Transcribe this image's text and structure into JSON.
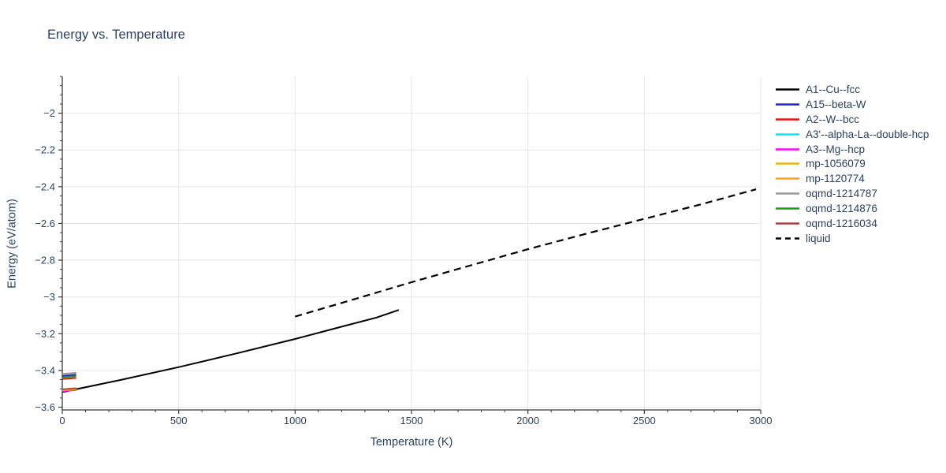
{
  "chart_data": {
    "type": "line",
    "title": "Energy vs. Temperature",
    "xlabel": "Temperature (K)",
    "ylabel": "Energy (eV/atom)",
    "xlim": [
      0,
      3000
    ],
    "ylim": [
      -3.615,
      -1.8
    ],
    "x_ticks": [
      0,
      500,
      1000,
      1500,
      2000,
      2500,
      3000
    ],
    "x_minor_step": 100,
    "y_ticks": [
      -2,
      -2.2,
      -2.4,
      -2.6,
      -2.8,
      -3,
      -3.2,
      -3.4,
      -3.6
    ],
    "y_minor_step": 0.05,
    "grid": true,
    "legend_position": "top-right",
    "text_color": "#2a3f5f",
    "grid_color": "#e6e6e6",
    "axis_color": "#3a3a3a",
    "series": [
      {
        "name": "A1--Cu--fcc",
        "color": "#000000",
        "dash": "solid",
        "points": [
          [
            0,
            -3.518
          ],
          [
            250,
            -3.452
          ],
          [
            500,
            -3.382
          ],
          [
            750,
            -3.307
          ],
          [
            1000,
            -3.229
          ],
          [
            1200,
            -3.162
          ],
          [
            1350,
            -3.112
          ],
          [
            1445,
            -3.071
          ]
        ]
      },
      {
        "name": "A15--beta-W",
        "color": "#2222dd",
        "dash": "solid",
        "points": [
          [
            0,
            -3.429
          ],
          [
            60,
            -3.423
          ]
        ]
      },
      {
        "name": "A2--W--bcc",
        "color": "#ee1111",
        "dash": "solid",
        "points": [
          [
            0,
            -3.447
          ],
          [
            60,
            -3.441
          ]
        ]
      },
      {
        "name": "A3'--alpha-La--double-hcp",
        "color": "#00eaff",
        "dash": "solid",
        "points": [
          [
            0,
            -3.511
          ],
          [
            60,
            -3.505
          ]
        ]
      },
      {
        "name": "A3--Mg--hcp",
        "color": "#ff00ff",
        "dash": "solid",
        "points": [
          [
            0,
            -3.513
          ],
          [
            60,
            -3.507
          ]
        ]
      },
      {
        "name": "mp-1056079",
        "color": "#e8b413",
        "dash": "solid",
        "points": [
          [
            0,
            -3.509
          ],
          [
            60,
            -3.503
          ]
        ]
      },
      {
        "name": "mp-1120774",
        "color": "#ffa412",
        "dash": "solid",
        "points": [
          [
            0,
            -3.507
          ],
          [
            60,
            -3.501
          ]
        ]
      },
      {
        "name": "oqmd-1214787",
        "color": "#9a9a9a",
        "dash": "solid",
        "points": [
          [
            0,
            -3.419
          ],
          [
            60,
            -3.413
          ]
        ]
      },
      {
        "name": "oqmd-1214876",
        "color": "#1a9e1a",
        "dash": "solid",
        "points": [
          [
            0,
            -3.437
          ],
          [
            60,
            -3.431
          ]
        ]
      },
      {
        "name": "oqmd-1216034",
        "color": "#ab4444",
        "dash": "solid",
        "points": [
          [
            0,
            -3.503
          ],
          [
            60,
            -3.497
          ]
        ]
      },
      {
        "name": "liquid",
        "color": "#000000",
        "dash": "dash",
        "points": [
          [
            1000,
            -3.107
          ],
          [
            1250,
            -3.014
          ],
          [
            1500,
            -2.92
          ],
          [
            1750,
            -2.83
          ],
          [
            2000,
            -2.74
          ],
          [
            2250,
            -2.656
          ],
          [
            2500,
            -2.575
          ],
          [
            2750,
            -2.494
          ],
          [
            2980,
            -2.414
          ]
        ]
      }
    ]
  }
}
